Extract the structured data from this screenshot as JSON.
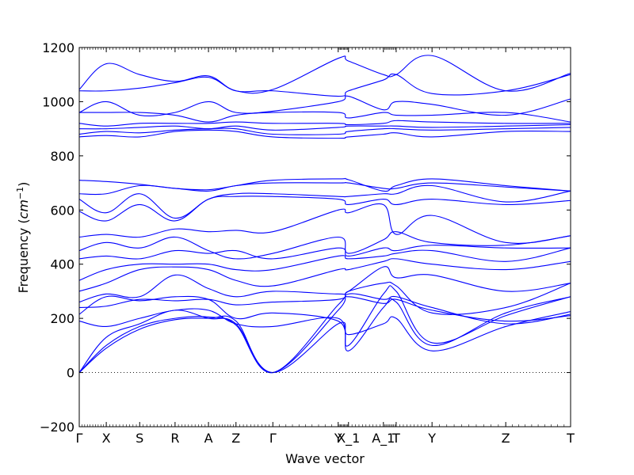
{
  "chart_data": {
    "type": "line",
    "title": "",
    "xlabel": "Wave vector",
    "ylabel_text": "Frequency (",
    "ylabel_unit_base": "cm",
    "ylabel_unit_exp": "−1",
    "ylabel_close": ")",
    "ylim": [
      -200,
      1200
    ],
    "yticks": [
      -200,
      0,
      200,
      400,
      600,
      800,
      1000,
      1200
    ],
    "ytick_labels": [
      "−200",
      "0",
      "200",
      "400",
      "600",
      "800",
      "1000",
      "1200"
    ],
    "grid": false,
    "zero_line": "dotted",
    "line_color": "#0000ff",
    "xlim": [
      0,
      1
    ],
    "high_symmetry_points": [
      {
        "label": "Γ",
        "x": 0.0
      },
      {
        "label": "X",
        "x": 0.055
      },
      {
        "label": "S",
        "x": 0.123
      },
      {
        "label": "R",
        "x": 0.195
      },
      {
        "label": "A",
        "x": 0.263
      },
      {
        "label": "Z",
        "x": 0.319
      },
      {
        "label": "Γ",
        "x": 0.394
      },
      {
        "label": "Y",
        "x": 0.527
      },
      {
        "label": "X_1",
        "x": 0.548
      },
      {
        "label": "A_1",
        "x": 0.619
      },
      {
        "label": "T",
        "x": 0.645
      },
      {
        "label": "Y",
        "x": 0.718
      },
      {
        "label": "Z",
        "x": 0.868
      },
      {
        "label": "T",
        "x": 1.0
      }
    ],
    "series": [
      {
        "values": [
          0,
          90,
          160,
          195,
          200,
          190,
          0,
          250,
          280,
          255,
          270,
          230,
          190,
          210
        ]
      },
      {
        "values": [
          0,
          100,
          170,
          200,
          205,
          175,
          0,
          230,
          290,
          270,
          280,
          240,
          180,
          215
        ]
      },
      {
        "values": [
          0,
          130,
          180,
          230,
          200,
          180,
          0,
          180,
          140,
          180,
          200,
          80,
          170,
          225
        ]
      },
      {
        "values": [
          190,
          170,
          200,
          230,
          230,
          180,
          170,
          200,
          80,
          240,
          260,
          100,
          220,
          280
        ]
      },
      {
        "values": [
          215,
          280,
          265,
          280,
          270,
          200,
          220,
          190,
          100,
          290,
          300,
          110,
          210,
          280
        ]
      },
      {
        "values": [
          240,
          245,
          270,
          265,
          270,
          250,
          260,
          270,
          300,
          330,
          320,
          220,
          240,
          330
        ]
      },
      {
        "values": [
          260,
          290,
          280,
          360,
          310,
          280,
          300,
          290,
          300,
          390,
          350,
          360,
          300,
          330
        ]
      },
      {
        "values": [
          300,
          330,
          380,
          390,
          380,
          340,
          320,
          380,
          380,
          410,
          420,
          400,
          380,
          410
        ]
      },
      {
        "values": [
          340,
          380,
          400,
          400,
          400,
          380,
          380,
          430,
          420,
          430,
          440,
          450,
          410,
          460
        ]
      },
      {
        "values": [
          420,
          430,
          420,
          450,
          440,
          450,
          420,
          460,
          430,
          460,
          450,
          470,
          460,
          460
        ]
      },
      {
        "values": [
          450,
          480,
          460,
          500,
          450,
          420,
          440,
          500,
          440,
          490,
          520,
          480,
          470,
          505
        ]
      },
      {
        "values": [
          500,
          510,
          500,
          530,
          520,
          525,
          520,
          600,
          590,
          620,
          510,
          580,
          480,
          505
        ]
      },
      {
        "values": [
          595,
          560,
          620,
          560,
          640,
          650,
          650,
          640,
          620,
          640,
          620,
          640,
          620,
          635
        ]
      },
      {
        "values": [
          640,
          590,
          660,
          570,
          640,
          660,
          660,
          650,
          650,
          660,
          660,
          690,
          630,
          670
        ]
      },
      {
        "values": [
          660,
          660,
          690,
          680,
          670,
          690,
          700,
          700,
          700,
          680,
          680,
          700,
          685,
          670
        ]
      },
      {
        "values": [
          710,
          705,
          695,
          680,
          675,
          690,
          710,
          715,
          712,
          670,
          690,
          715,
          690,
          670
        ]
      },
      {
        "values": [
          870,
          875,
          870,
          890,
          895,
          890,
          870,
          865,
          870,
          880,
          885,
          870,
          890,
          890
        ]
      },
      {
        "values": [
          880,
          890,
          885,
          895,
          900,
          900,
          880,
          880,
          890,
          900,
          900,
          895,
          900,
          905
        ]
      },
      {
        "values": [
          900,
          900,
          905,
          910,
          900,
          910,
          895,
          905,
          910,
          910,
          910,
          905,
          910,
          915
        ]
      },
      {
        "values": [
          920,
          910,
          920,
          920,
          920,
          925,
          920,
          920,
          915,
          920,
          930,
          925,
          920,
          920
        ]
      },
      {
        "values": [
          960,
          960,
          960,
          950,
          925,
          950,
          960,
          960,
          940,
          960,
          950,
          950,
          960,
          925
        ]
      },
      {
        "values": [
          960,
          1000,
          950,
          960,
          1000,
          960,
          965,
          1000,
          1020,
          970,
          1000,
          990,
          950,
          1010
        ]
      },
      {
        "values": [
          1040,
          1040,
          1050,
          1070,
          1090,
          1040,
          1040,
          1020,
          1040,
          1080,
          1100,
          1030,
          1040,
          1100
        ]
      },
      {
        "values": [
          1045,
          1140,
          1100,
          1075,
          1095,
          1040,
          1045,
          1160,
          1150,
          1100,
          1100,
          1170,
          1040,
          1105
        ]
      }
    ]
  }
}
